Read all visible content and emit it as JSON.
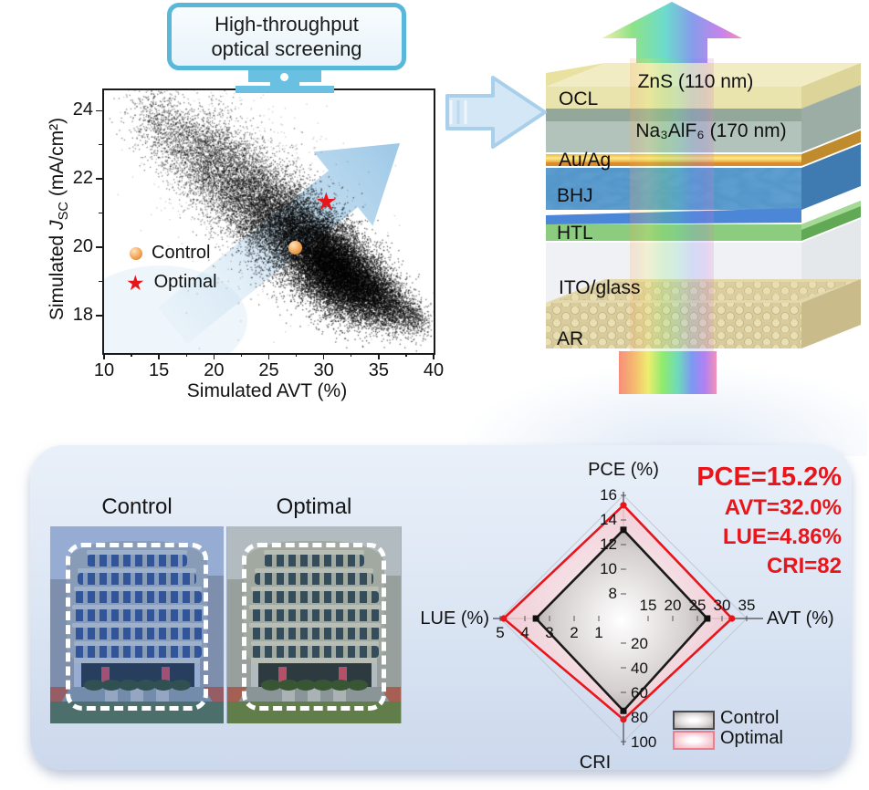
{
  "title_banner": {
    "line1": "High-throughput",
    "line2": "optical screening"
  },
  "device_stack": {
    "side_label": "OCL",
    "layers": [
      {
        "name": "ZnS",
        "label": "ZnS (110 nm)"
      },
      {
        "name": "Na3AlF6",
        "label": "Na₃AlF₆ (170 nm)"
      },
      {
        "name": "AuAg",
        "label": "Au/Ag"
      },
      {
        "name": "BHJ",
        "label": "BHJ"
      },
      {
        "name": "HTL",
        "label": "HTL"
      },
      {
        "name": "ITO",
        "label": "ITO/glass"
      },
      {
        "name": "AR",
        "label": "AR"
      }
    ]
  },
  "comparison": {
    "left_label": "Control",
    "right_label": "Optimal"
  },
  "annotations": {
    "color": "#e8151b",
    "lines": [
      "PCE=15.2%",
      "AVT=32.0%",
      "LUE=4.86%",
      "CRI=82"
    ]
  },
  "chart_data": [
    {
      "type": "scatter",
      "title": "Simulated JSC vs simulated AVT of screened designs",
      "xlabel": "Simulated AVT (%)",
      "ylabel": "Simulated JSC (mA/cm2)",
      "ylabel_parts": {
        "prefix": "Simulated ",
        "symbol": "J",
        "sub": "SC",
        "suffix": " (mA/cm²)"
      },
      "xlim": [
        10,
        40
      ],
      "ylim": [
        16.9,
        24.6
      ],
      "xticks": [
        10,
        15,
        20,
        25,
        30,
        35,
        40
      ],
      "xminor": [
        12.5,
        17.5,
        22.5,
        27.5,
        32.5,
        37.5
      ],
      "yticks": [
        18,
        20,
        22,
        24
      ],
      "yminor": [
        19,
        21,
        23
      ],
      "grid": false,
      "legend_position": "center-left",
      "legend": [
        {
          "label": "Control",
          "marker": "circle",
          "color": "#f0a355",
          "glyph": ""
        },
        {
          "label": "Optimal",
          "marker": "star",
          "color": "#e8151b",
          "glyph": "★"
        }
      ],
      "points_labeled": [
        {
          "name": "Control",
          "x": 27.4,
          "y": 20.0
        },
        {
          "name": "Optimal",
          "x": 30.3,
          "y": 21.3
        }
      ],
      "cloud_description": "dense Monte-Carlo point cloud, negative correlation band from (13,24.3) to (39,17.8), densest near (30,19.5)",
      "cloud": {
        "seed": 12345,
        "tilt": -0.1,
        "dot_color": "#000000",
        "clusters": [
          [
            700,
            15.0,
            23.6,
            1.5,
            0.6,
            0.5
          ],
          [
            1500,
            18.5,
            22.8,
            1.8,
            0.7,
            0.5
          ],
          [
            2300,
            21.5,
            22.0,
            1.9,
            0.75,
            0.5
          ],
          [
            3200,
            24.5,
            21.2,
            2.0,
            0.75,
            0.55
          ],
          [
            4500,
            27.3,
            20.4,
            1.9,
            0.7,
            0.6
          ],
          [
            8000,
            30.2,
            19.6,
            1.8,
            0.65,
            0.65
          ],
          [
            5500,
            32.4,
            19.0,
            1.7,
            0.55,
            0.65
          ],
          [
            2200,
            34.8,
            18.55,
            1.4,
            0.45,
            0.6
          ],
          [
            800,
            36.8,
            18.15,
            1.1,
            0.33,
            0.55
          ],
          [
            300,
            38.3,
            17.95,
            0.65,
            0.22,
            0.5
          ],
          [
            800,
            23.5,
            21.8,
            4.8,
            1.7,
            0.22
          ]
        ]
      }
    },
    {
      "type": "radar",
      "title": "Control vs optimal device metrics",
      "axes": [
        {
          "label": "PCE (%)",
          "min": 6,
          "max": 16,
          "ticks": [
            8,
            10,
            12,
            14,
            16
          ],
          "direction": "up"
        },
        {
          "label": "AVT (%)",
          "min": 10,
          "max": 35,
          "ticks": [
            15,
            20,
            25,
            30,
            35
          ],
          "direction": "right"
        },
        {
          "label": "CRI",
          "min": 0,
          "max": 100,
          "ticks": [
            20,
            40,
            60,
            80,
            100
          ],
          "direction": "down"
        },
        {
          "label": "LUE (%)",
          "min": 0,
          "max": 5,
          "ticks": [
            1,
            2,
            3,
            4,
            5
          ],
          "direction": "left"
        }
      ],
      "series": [
        {
          "name": "Control",
          "values": [
            13.2,
            27.0,
            75,
            3.55
          ],
          "stroke": "#1a1a1a"
        },
        {
          "name": "Optimal",
          "values": [
            15.2,
            32.0,
            82,
            4.86
          ],
          "stroke": "#e8151b"
        }
      ],
      "legend": [
        "Control",
        "Optimal"
      ],
      "legend_position": "bottom-right"
    }
  ]
}
